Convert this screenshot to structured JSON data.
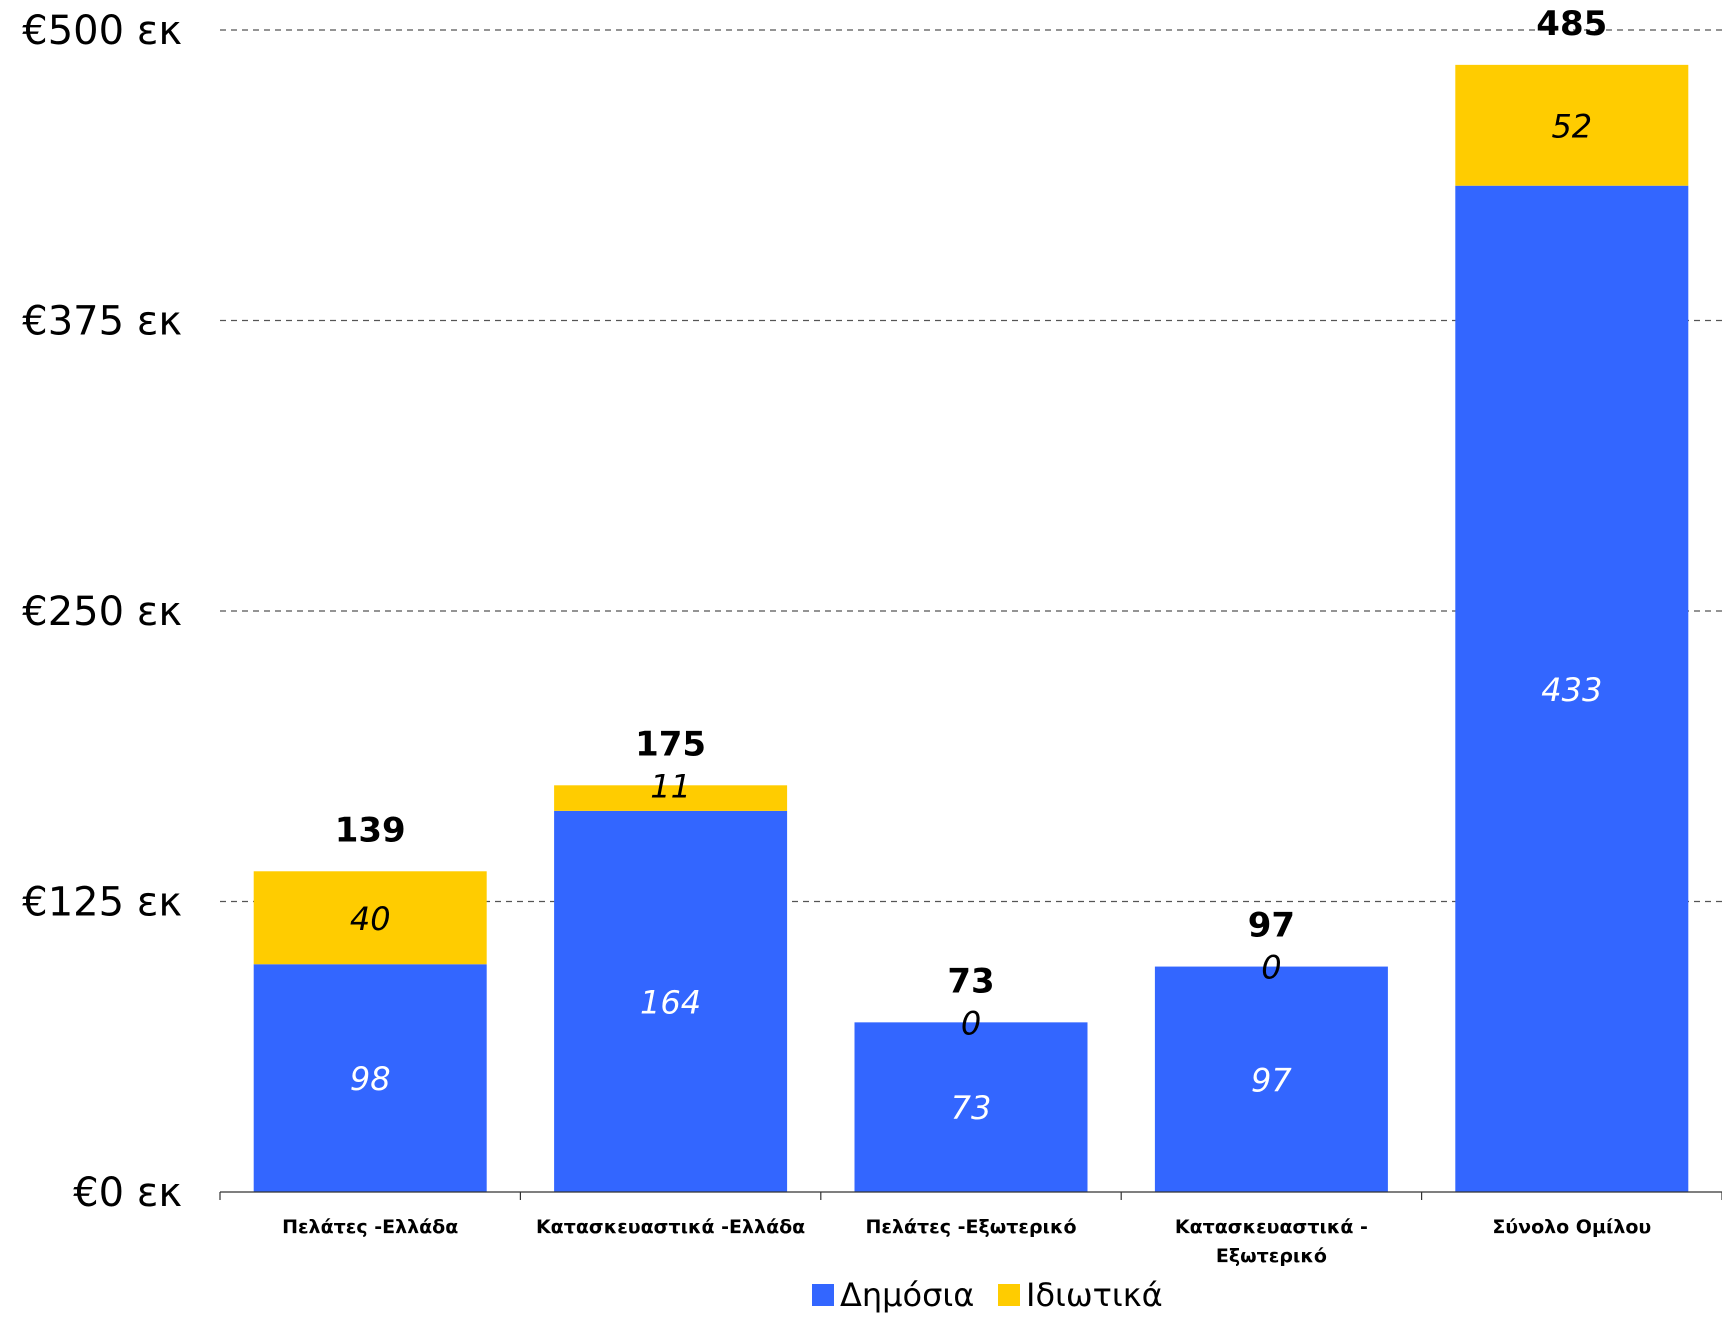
{
  "chart_data": {
    "type": "bar",
    "stacked": true,
    "categories": [
      [
        "Πελάτες -Ελλάδα"
      ],
      [
        "Κατασκευαστικά -Ελλάδα"
      ],
      [
        "Πελάτες -Εξωτερικό"
      ],
      [
        "Κατασκευαστικά -",
        "Εξωτερικό"
      ],
      [
        "Σύνολο Ομίλου"
      ]
    ],
    "series": [
      {
        "name": "Δημόσια",
        "color": "#3366ff",
        "label_color": "#ffffff",
        "values": [
          98,
          164,
          73,
          97,
          433
        ]
      },
      {
        "name": "Ιδιωτικά",
        "color": "#ffcc00",
        "label_color": "#000000",
        "values": [
          40,
          11,
          0,
          0,
          52
        ]
      }
    ],
    "totals": [
      139,
      175,
      73,
      97,
      485
    ],
    "ylim": [
      0,
      500
    ],
    "yticks": [
      0,
      125,
      250,
      375,
      500
    ],
    "ytick_labels": [
      "€0 εκ",
      "€125 εκ",
      "€250 εκ",
      "€375 εκ",
      "€500 εκ"
    ],
    "grid": true,
    "legend_position": "bottom"
  }
}
